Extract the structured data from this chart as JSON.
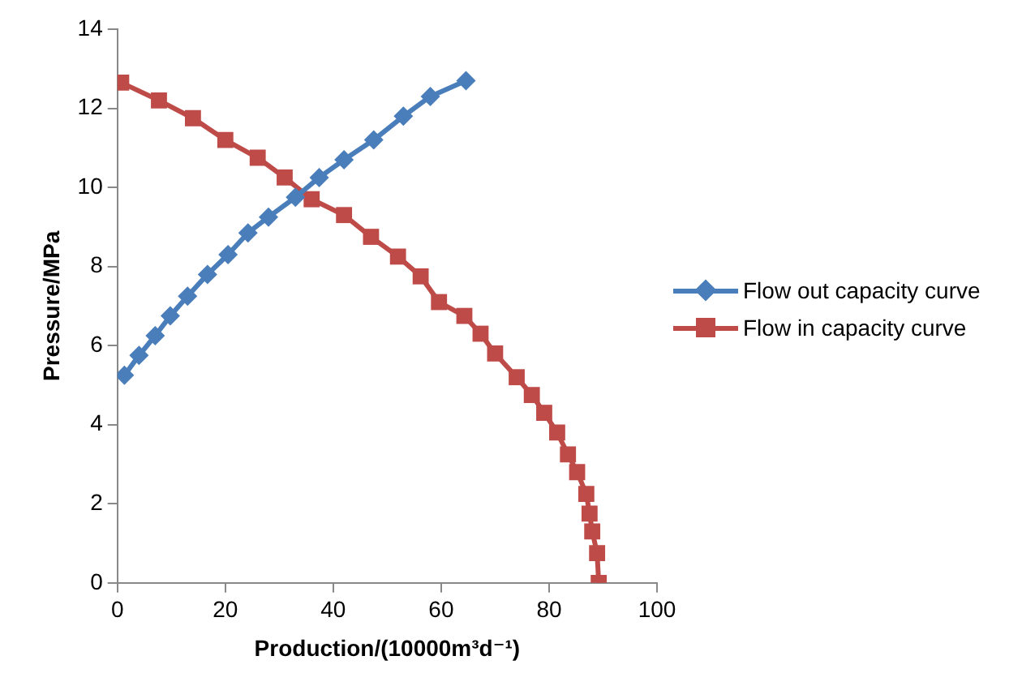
{
  "chart_data": {
    "type": "line",
    "xlabel": "Production/(10000m³d⁻¹)",
    "ylabel": "Pressure/MPa",
    "xlim": [
      0,
      100
    ],
    "xticks": [
      0,
      20,
      40,
      60,
      80,
      100
    ],
    "ylim": [
      0,
      14
    ],
    "yticks": [
      0,
      2,
      4,
      6,
      8,
      10,
      12,
      14
    ],
    "grid": false,
    "legend": "right",
    "line_style": "solid",
    "series": [
      {
        "name": "Flow out capacity curve",
        "color": "#4a7ebb",
        "marker": "diamond",
        "x": [
          1.3,
          4,
          7,
          9.8,
          13,
          16.7,
          20.5,
          24.2,
          28,
          33,
          37.4,
          42,
          47.5,
          53,
          58,
          64.6
        ],
        "values": [
          5.25,
          5.75,
          6.25,
          6.75,
          7.25,
          7.8,
          8.3,
          8.85,
          9.25,
          9.75,
          10.25,
          10.7,
          11.2,
          11.8,
          12.3,
          12.7
        ]
      },
      {
        "name": "Flow in capacity curve",
        "color": "#be4b48",
        "marker": "square",
        "x": [
          0.7,
          7.7,
          14,
          20,
          26,
          31,
          36,
          42,
          47,
          52,
          56.2,
          59.6,
          64.3,
          67.3,
          70,
          74,
          76.8,
          79.1,
          81.5,
          83.5,
          85.2,
          86.9,
          87.5,
          88,
          88.9,
          89.2
        ],
        "values": [
          12.65,
          12.2,
          11.75,
          11.2,
          10.75,
          10.25,
          9.7,
          9.3,
          8.75,
          8.25,
          7.75,
          7.1,
          6.75,
          6.3,
          5.8,
          5.2,
          4.75,
          4.3,
          3.8,
          3.25,
          2.8,
          2.25,
          1.75,
          1.3,
          0.75,
          0
        ]
      }
    ]
  }
}
